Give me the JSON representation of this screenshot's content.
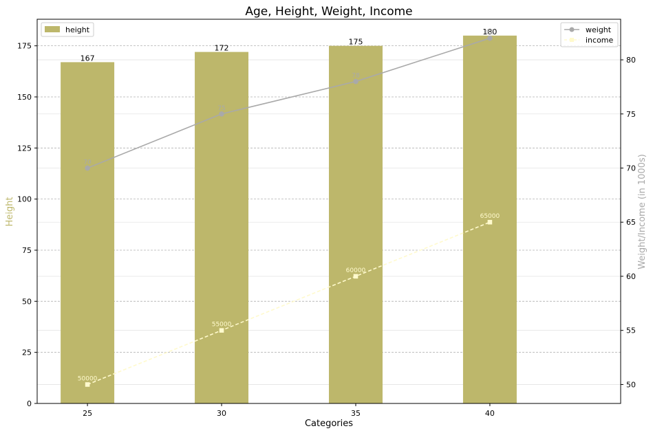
{
  "chart_data": {
    "type": "bar",
    "title": "Age, Height, Weight, Income",
    "xlabel": "Categories",
    "ylabel": "Height",
    "ylabel_right": "Weight/Income (in 1000s)",
    "categories": [
      "25",
      "30",
      "35",
      "40"
    ],
    "ylim": [
      0,
      188
    ],
    "yticks": [
      0,
      25,
      50,
      75,
      100,
      125,
      150,
      175
    ],
    "y2lim": [
      48.25,
      83.75
    ],
    "y2ticks": [
      50,
      55,
      60,
      65,
      70,
      75,
      80
    ],
    "grid": true,
    "series": [
      {
        "name": "height",
        "kind": "bar",
        "axis": "left",
        "color": "#bdb76b",
        "values": [
          167,
          172,
          175,
          180
        ],
        "labels": [
          "167",
          "172",
          "175",
          "180"
        ]
      },
      {
        "name": "weight",
        "kind": "line",
        "axis": "right",
        "color": "#a9a9a9",
        "marker": "circle",
        "dash": "solid",
        "values": [
          70,
          75,
          78,
          82
        ],
        "labels": [
          "70",
          "75",
          "78",
          "82"
        ]
      },
      {
        "name": "income",
        "kind": "line",
        "axis": "right",
        "color": "#fffacd",
        "marker": "square",
        "dash": "dashed",
        "values": [
          50,
          55,
          60,
          65
        ],
        "labels": [
          "50000",
          "55000",
          "60000",
          "65000"
        ]
      }
    ],
    "legend_left": "top-left",
    "legend_right": "top-right"
  }
}
